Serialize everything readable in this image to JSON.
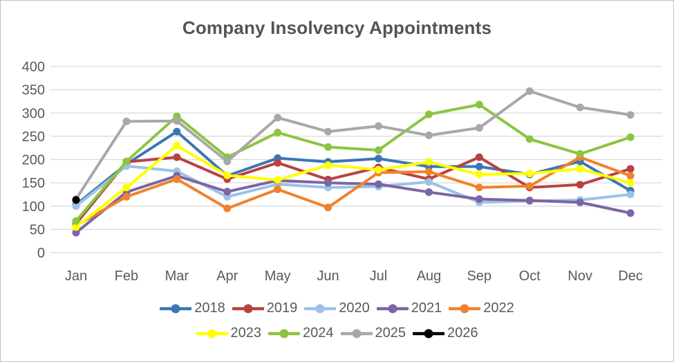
{
  "window": {
    "background": "#FFFFFF",
    "border_color": "#BFBFBF"
  },
  "chart_data": {
    "type": "line",
    "title": "Company Insolvency Appointments",
    "title_color": "#545454",
    "categories": [
      "Jan",
      "Feb",
      "Mar",
      "Apr",
      "May",
      "Jun",
      "Jul",
      "Aug",
      "Sep",
      "Oct",
      "Nov",
      "Dec"
    ],
    "ylim": [
      0,
      400
    ],
    "yticks": [
      0,
      50,
      100,
      150,
      200,
      250,
      300,
      350,
      400
    ],
    "grid": true,
    "gridline_color": "#D9D9D9",
    "axis_label_color": "#595959",
    "legend_position": "bottom",
    "legend_text_color": "#595959",
    "series": [
      {
        "name": "2018",
        "color": "#3B76B4",
        "values": [
          103,
          190,
          260,
          165,
          203,
          195,
          202,
          185,
          185,
          168,
          196,
          133
        ]
      },
      {
        "name": "2019",
        "color": "#B84240",
        "values": [
          62,
          195,
          205,
          158,
          193,
          157,
          183,
          158,
          205,
          140,
          146,
          180
        ]
      },
      {
        "name": "2020",
        "color": "#9CC2E5",
        "values": [
          100,
          186,
          175,
          120,
          147,
          140,
          142,
          152,
          108,
          111,
          113,
          125
        ]
      },
      {
        "name": "2021",
        "color": "#7C64A5",
        "values": [
          43,
          130,
          165,
          131,
          155,
          150,
          147,
          130,
          115,
          112,
          108,
          85
        ]
      },
      {
        "name": "2022",
        "color": "#F0822D",
        "values": [
          58,
          120,
          158,
          95,
          136,
          97,
          172,
          174,
          140,
          143,
          205,
          165
        ]
      },
      {
        "name": "2023",
        "color": "#FFFF00",
        "values": [
          55,
          140,
          230,
          166,
          156,
          188,
          178,
          195,
          168,
          170,
          180,
          150
        ]
      },
      {
        "name": "2024",
        "color": "#8BC540",
        "values": [
          68,
          196,
          293,
          205,
          258,
          227,
          220,
          297,
          318,
          244,
          212,
          248
        ]
      },
      {
        "name": "2025",
        "color": "#A8A8A8",
        "values": [
          115,
          282,
          283,
          196,
          290,
          260,
          272,
          252,
          268,
          347,
          312,
          296
        ]
      },
      {
        "name": "2026",
        "color": "#000000",
        "values": [
          113,
          null,
          null,
          null,
          null,
          null,
          null,
          null,
          null,
          null,
          null,
          null
        ]
      }
    ]
  }
}
